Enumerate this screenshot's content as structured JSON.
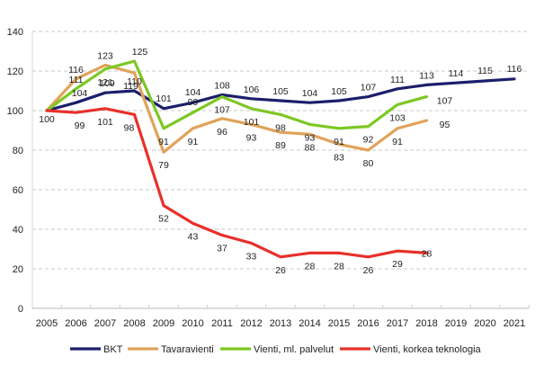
{
  "chart_data": {
    "type": "line",
    "title": "",
    "xlabel": "",
    "ylabel": "",
    "ylim": [
      0,
      140
    ],
    "yticks": [
      0,
      20,
      40,
      60,
      80,
      100,
      120,
      140
    ],
    "grid": true,
    "legend_position": "bottom",
    "x": [
      "2005",
      "2006",
      "2007",
      "2008",
      "2009",
      "2010",
      "2011",
      "2012",
      "2013",
      "2014",
      "2015",
      "2016",
      "2017",
      "2018",
      "2019",
      "2020",
      "2021"
    ],
    "series": [
      {
        "name": "BKT",
        "color": "#1c1f6b",
        "values": [
          100,
          104,
          109,
          110,
          101,
          104,
          108,
          106,
          105,
          104,
          105,
          107,
          111,
          113,
          114,
          115,
          116
        ]
      },
      {
        "name": "Tavaravienti",
        "color": "#e0a35a",
        "values": [
          100,
          116,
          123,
          119,
          79,
          91,
          96,
          93,
          89,
          88,
          83,
          80,
          91,
          95,
          null,
          null,
          null
        ]
      },
      {
        "name": "Vienti, ml. palvelut",
        "color": "#7dc823",
        "values": [
          100,
          111,
          121,
          125,
          91,
          99,
          107,
          101,
          98,
          93,
          91,
          92,
          103,
          107,
          null,
          null,
          null
        ]
      },
      {
        "name": "Vienti, korkea teknologia",
        "color": "#e8302a",
        "values": [
          100,
          99,
          101,
          98,
          52,
          43,
          37,
          33,
          26,
          28,
          28,
          26,
          29,
          28,
          null,
          null,
          null
        ]
      }
    ]
  }
}
